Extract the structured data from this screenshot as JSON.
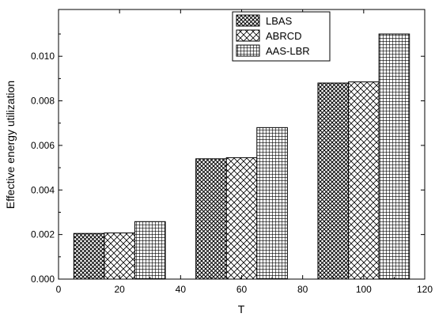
{
  "chart_data": {
    "type": "bar",
    "xlabel": "T",
    "ylabel": "Effective energy utilization",
    "x": [
      20,
      60,
      100
    ],
    "xlim": [
      0,
      120
    ],
    "ylim": [
      0,
      0.0121
    ],
    "x_ticks": [
      0,
      20,
      40,
      60,
      80,
      100,
      120
    ],
    "y_ticks": [
      0,
      0.002,
      0.004,
      0.006,
      0.008,
      0.01
    ],
    "x_tick_labels": [
      "0",
      "20",
      "40",
      "60",
      "80",
      "100",
      "120"
    ],
    "y_tick_labels": [
      "0.000",
      "0.002",
      "0.004",
      "0.006",
      "0.008",
      "0.010"
    ],
    "series": [
      {
        "name": "LBAS",
        "values": [
          0.00205,
          0.0054,
          0.0088
        ],
        "pattern": "crosshatch-dense"
      },
      {
        "name": "ABRCD",
        "values": [
          0.00207,
          0.00545,
          0.00885
        ],
        "pattern": "diagonal-cross"
      },
      {
        "name": "AAS-LBR",
        "values": [
          0.00258,
          0.0068,
          0.011
        ],
        "pattern": "grid"
      }
    ],
    "legend_position": "top-center",
    "grid": false
  }
}
